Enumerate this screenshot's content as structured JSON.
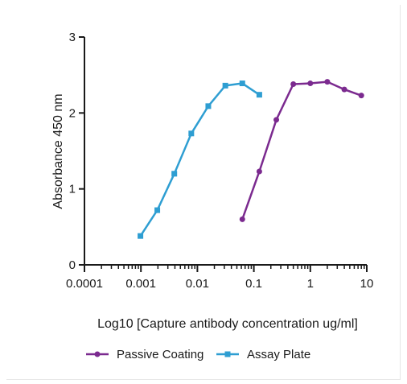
{
  "chart_data": {
    "type": "line",
    "xlabel": "Log10 [Capture antibody concentration ug/ml]",
    "ylabel": "Absorbance 450 nm",
    "x_scale": "log",
    "xlim": [
      0.0001,
      10
    ],
    "ylim": [
      0,
      3
    ],
    "x_ticks": [
      0.0001,
      0.001,
      0.01,
      0.1,
      1,
      10
    ],
    "x_tick_labels": [
      "0.0001",
      "0.001",
      "0.01",
      "0.1",
      "1",
      "10"
    ],
    "y_ticks": [
      0,
      1,
      2,
      3
    ],
    "y_tick_labels": [
      "0",
      "1",
      "2",
      "3"
    ],
    "grid": false,
    "legend_position": "bottom",
    "series": [
      {
        "name": "Passive Coating",
        "color": "#7b2a8f",
        "marker": "circle",
        "x": [
          0.0625,
          0.125,
          0.25,
          0.5,
          1,
          2,
          4,
          8
        ],
        "y": [
          0.6,
          1.23,
          1.91,
          2.38,
          2.39,
          2.41,
          2.31,
          2.23
        ]
      },
      {
        "name": "Assay Plate",
        "color": "#2e9ed2",
        "marker": "square",
        "x": [
          0.00098,
          0.00195,
          0.0039,
          0.0078,
          0.0156,
          0.03125,
          0.0625,
          0.125
        ],
        "y": [
          0.38,
          0.72,
          1.2,
          1.73,
          2.09,
          2.36,
          2.39,
          2.24
        ]
      }
    ]
  }
}
